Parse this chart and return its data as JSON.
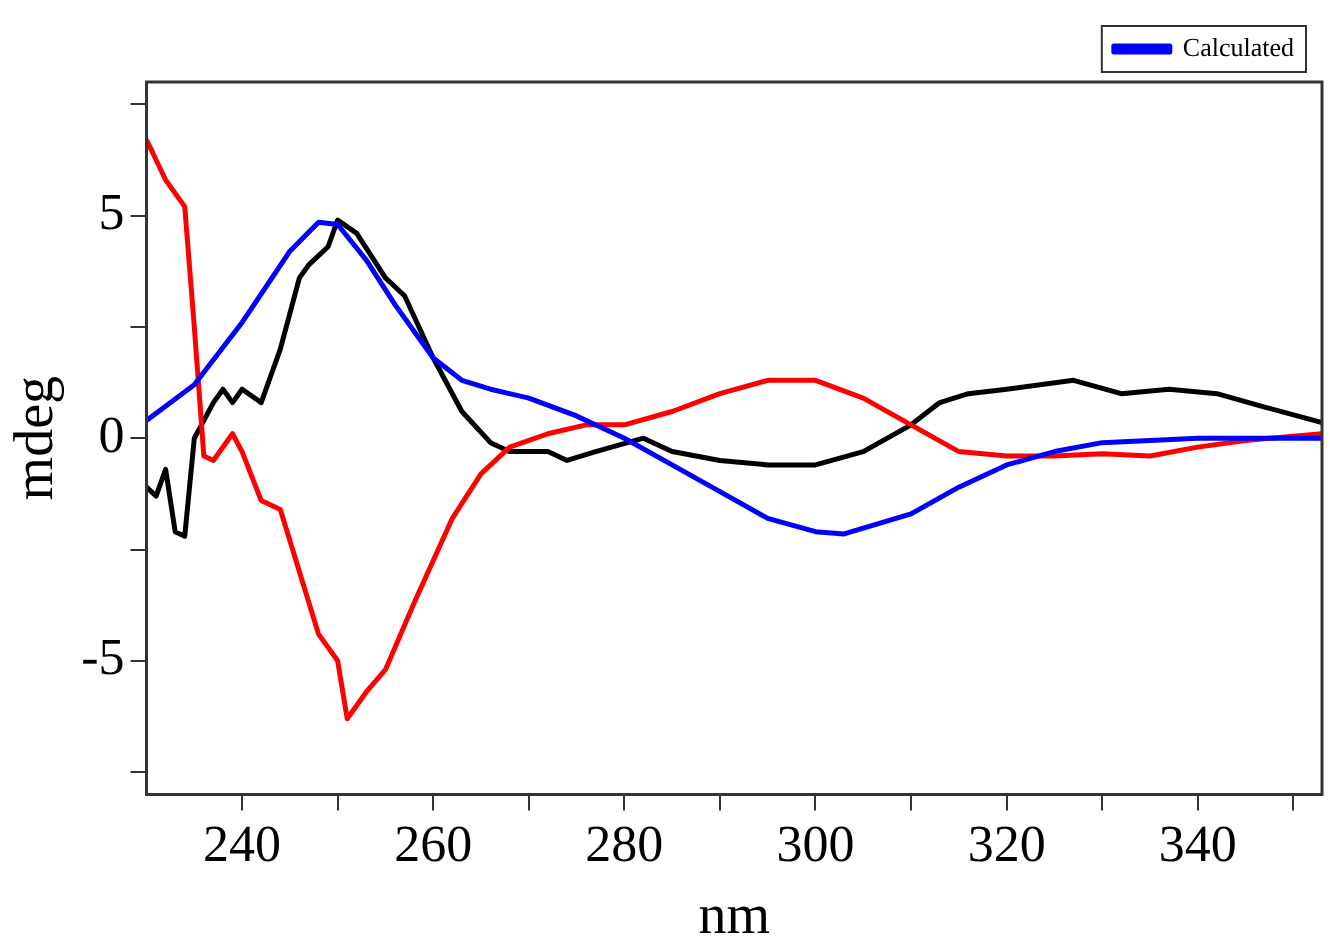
{
  "chart_data": {
    "type": "line",
    "xlabel": "nm",
    "ylabel": "mdeg",
    "xlim": [
      230,
      353
    ],
    "ylim": [
      -8,
      8
    ],
    "xticks": [
      240,
      {
        "value": 250,
        "label": null
      },
      260,
      {
        "value": 270,
        "label": null
      },
      280,
      {
        "value": 290,
        "label": null
      },
      300,
      {
        "value": 310,
        "label": null
      },
      320,
      {
        "value": 330,
        "label": null
      },
      340,
      {
        "value": 350,
        "label": null
      }
    ],
    "yticks": [
      {
        "value": -7.5,
        "label": null
      },
      -5,
      {
        "value": -2.5,
        "label": null
      },
      0,
      {
        "value": 2.5,
        "label": null
      },
      5,
      {
        "value": 7.5,
        "label": null
      }
    ],
    "grid": false,
    "legend": "top right",
    "marker": "none",
    "line_style": "solid",
    "series": [
      {
        "name": "Calculated",
        "color": "#0000ff",
        "x": [
          230,
          235,
          240,
          245,
          248,
          250,
          253,
          256,
          260,
          263,
          266,
          270,
          275,
          280,
          285,
          290,
          295,
          300,
          303,
          310,
          315,
          320,
          325,
          330,
          340,
          353
        ],
        "values": [
          0.4,
          1.2,
          2.6,
          4.2,
          4.85,
          4.8,
          4.0,
          3.0,
          1.8,
          1.3,
          1.1,
          0.9,
          0.5,
          0.0,
          -0.6,
          -1.2,
          -1.8,
          -2.1,
          -2.15,
          -1.7,
          -1.1,
          -0.6,
          -0.3,
          -0.1,
          0,
          0
        ]
      },
      {
        "color": "#ff0000",
        "x": [
          230,
          232,
          234,
          235,
          236,
          237,
          239,
          240,
          242,
          244,
          246,
          248,
          250,
          251,
          253,
          255,
          258,
          262,
          265,
          268,
          272,
          276,
          280,
          285,
          290,
          295,
          300,
          305,
          310,
          315,
          320,
          325,
          330,
          335,
          340,
          345,
          353
        ],
        "values": [
          6.7,
          5.8,
          5.2,
          2.5,
          -0.4,
          -0.5,
          0.1,
          -0.3,
          -1.4,
          -1.6,
          -3,
          -4.4,
          -5.0,
          -6.3,
          -5.7,
          -5.2,
          -3.7,
          -1.8,
          -0.8,
          -0.2,
          0.1,
          0.3,
          0.3,
          0.6,
          1.0,
          1.3,
          1.3,
          0.9,
          0.3,
          -0.3,
          -0.4,
          -0.4,
          -0.35,
          -0.4,
          -0.2,
          -0.05,
          0.1
        ]
      },
      {
        "color": "#000000",
        "x": [
          230,
          231,
          232,
          233,
          234,
          235,
          237,
          238,
          239,
          240,
          242,
          244,
          246,
          247,
          249,
          250,
          252,
          255,
          257,
          260,
          263,
          266,
          268,
          272,
          274,
          277,
          282,
          285,
          290,
          295,
          300,
          305,
          310,
          313,
          316,
          320,
          327,
          332,
          337,
          342,
          347,
          353
        ],
        "values": [
          -1.1,
          -1.3,
          -0.7,
          -2.1,
          -2.2,
          0,
          0.8,
          1.1,
          0.8,
          1.1,
          0.8,
          2.0,
          3.6,
          3.9,
          4.3,
          4.9,
          4.6,
          3.6,
          3.2,
          1.8,
          0.6,
          -0.1,
          -0.3,
          -0.3,
          -0.5,
          -0.3,
          0,
          -0.3,
          -0.5,
          -0.6,
          -0.6,
          -0.3,
          0.3,
          0.8,
          1.0,
          1.1,
          1.3,
          1.0,
          1.1,
          1.0,
          0.7,
          0.35
        ]
      }
    ]
  }
}
